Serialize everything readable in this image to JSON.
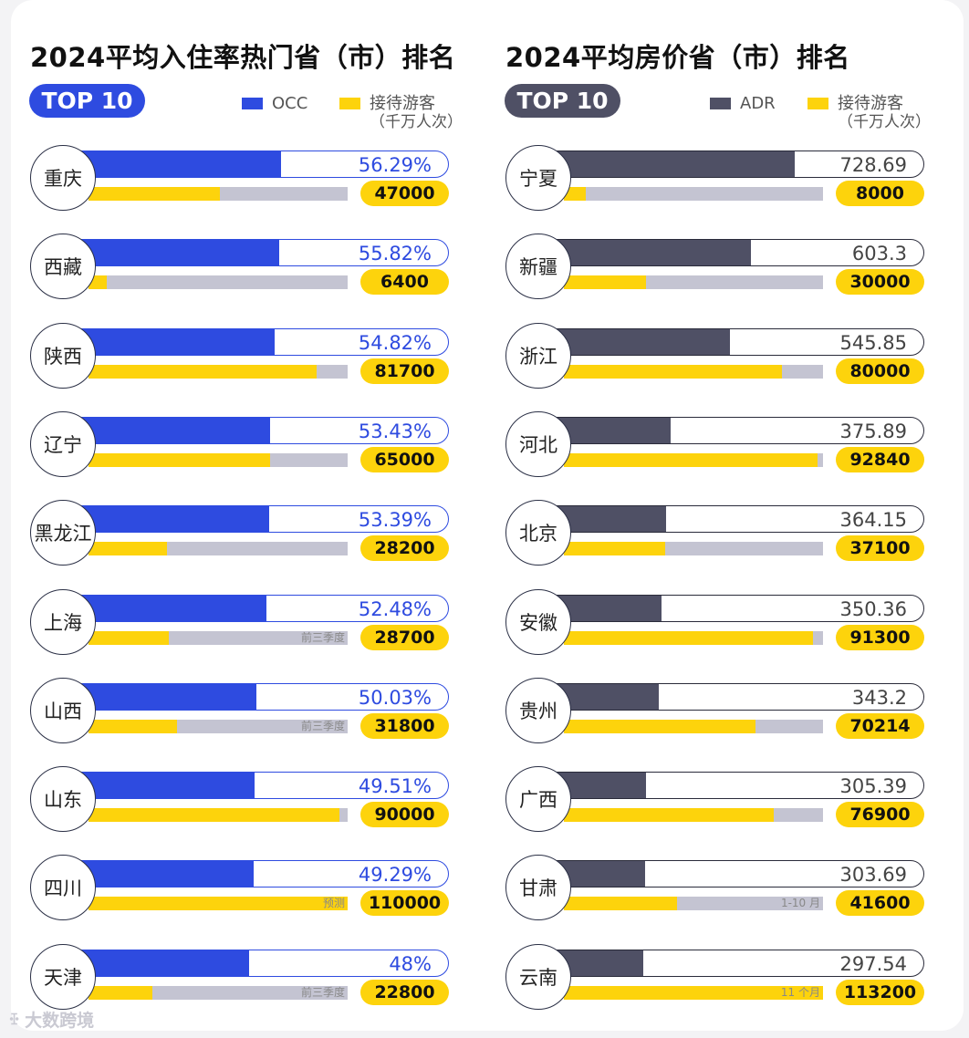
{
  "chart_data": [
    {
      "type": "bar",
      "title": "2024平均入住率热门省（市）排名",
      "badge": "TOP 10",
      "legend": [
        {
          "name": "OCC",
          "color": "#2e4be0"
        },
        {
          "name": "接待游客",
          "sub": "（千万人次）",
          "color": "#fdd30c"
        }
      ],
      "categories": [
        "重庆",
        "西藏",
        "陕西",
        "辽宁",
        "黑龙江",
        "上海",
        "山西",
        "山东",
        "四川",
        "天津"
      ],
      "series": [
        {
          "name": "OCC",
          "values": [
            56.29,
            55.82,
            54.82,
            53.43,
            53.39,
            52.48,
            50.03,
            49.51,
            49.29,
            48
          ],
          "labels": [
            "56.29%",
            "55.82%",
            "54.82%",
            "53.43%",
            "53.39%",
            "52.48%",
            "50.03%",
            "49.51%",
            "49.29%",
            "48%"
          ]
        },
        {
          "name": "接待游客",
          "values": [
            47000,
            6400,
            81700,
            65000,
            28200,
            28700,
            31800,
            90000,
            110000,
            22800
          ],
          "labels": [
            "47000",
            "6400",
            "81700",
            "65000",
            "28200",
            "28700",
            "31800",
            "90000",
            "110000",
            "22800"
          ],
          "notes": [
            "",
            "",
            "",
            "",
            "",
            "前三季度",
            "前三季度",
            "",
            "预测",
            "前三季度"
          ]
        }
      ],
      "occ_axis_max": 100,
      "tourist_axis_max": 93000
    },
    {
      "type": "bar",
      "title": "2024平均房价省（市）排名",
      "badge": "TOP 10",
      "legend": [
        {
          "name": "ADR",
          "color": "#4f5065"
        },
        {
          "name": "接待游客",
          "sub": "（千万人次）",
          "color": "#fdd30c"
        }
      ],
      "categories": [
        "宁夏",
        "新疆",
        "浙江",
        "河北",
        "北京",
        "安徽",
        "贵州",
        "广西",
        "甘肃",
        "云南"
      ],
      "series": [
        {
          "name": "ADR",
          "values": [
            728.69,
            603.3,
            545.85,
            375.89,
            364.15,
            350.36,
            343.2,
            305.39,
            303.69,
            297.54
          ],
          "labels": [
            "728.69",
            "603.3",
            "545.85",
            "375.89",
            "364.15",
            "350.36",
            "343.2",
            "305.39",
            "303.69",
            "297.54"
          ]
        },
        {
          "name": "接待游客",
          "values": [
            8000,
            30000,
            80000,
            92840,
            37100,
            91300,
            70214,
            76900,
            41600,
            113200
          ],
          "labels": [
            "8000",
            "30000",
            "80000",
            "92840",
            "37100",
            "91300",
            "70214",
            "76900",
            "41600",
            "113200"
          ],
          "notes": [
            "",
            "",
            "",
            "",
            "",
            "",
            "",
            "",
            "1-10 月",
            "11 个月"
          ]
        }
      ],
      "adr_axis_max": 1100,
      "tourist_axis_max": 95000
    }
  ],
  "watermark": "大数跨境",
  "watermark_logo": "ꔀ"
}
